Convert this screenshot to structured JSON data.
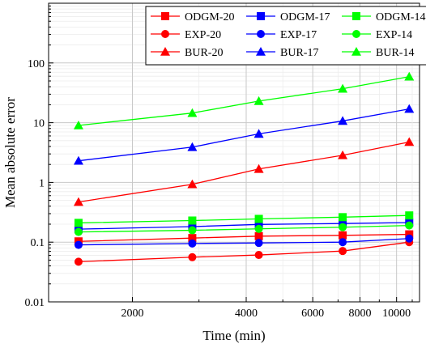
{
  "chart_data": {
    "type": "line",
    "xlabel": "Time (min)",
    "ylabel": "Mean absolute error",
    "x_scale": "log",
    "y_scale": "log",
    "xlim": [
      1200,
      11500
    ],
    "ylim": [
      0.01,
      1000
    ],
    "x_ticks": [
      2000,
      4000,
      6000,
      8000,
      10000
    ],
    "x_tick_labels": [
      "2000",
      "4000",
      "6000",
      "8000",
      "10000"
    ],
    "y_ticks": [
      0.01,
      0.1,
      1,
      10,
      100
    ],
    "y_tick_labels": [
      "0.01",
      "0.1",
      "1",
      "10",
      "100"
    ],
    "grid": true,
    "legend_position": "top",
    "x": [
      1440,
      2880,
      4320,
      7200,
      10800
    ],
    "series": [
      {
        "name": "ODGM-20",
        "color": "#ff0000",
        "marker": "square",
        "values": [
          0.103,
          0.117,
          0.126,
          0.13,
          0.135
        ]
      },
      {
        "name": "ODGM-17",
        "color": "#0000ff",
        "marker": "square",
        "values": [
          0.165,
          0.182,
          0.198,
          0.205,
          0.213
        ]
      },
      {
        "name": "ODGM-14",
        "color": "#00ff00",
        "marker": "square",
        "values": [
          0.21,
          0.23,
          0.245,
          0.262,
          0.28
        ]
      },
      {
        "name": "EXP-20",
        "color": "#ff0000",
        "marker": "circle",
        "values": [
          0.047,
          0.056,
          0.061,
          0.071,
          0.1
        ]
      },
      {
        "name": "EXP-17",
        "color": "#0000ff",
        "marker": "circle",
        "values": [
          0.09,
          0.095,
          0.097,
          0.1,
          0.115
        ]
      },
      {
        "name": "EXP-14",
        "color": "#00ff00",
        "marker": "circle",
        "values": [
          0.148,
          0.158,
          0.167,
          0.178,
          0.19
        ]
      },
      {
        "name": "BUR-20",
        "color": "#ff0000",
        "marker": "triangle",
        "values": [
          0.47,
          0.93,
          1.68,
          2.85,
          4.75
        ]
      },
      {
        "name": "BUR-17",
        "color": "#0000ff",
        "marker": "triangle",
        "values": [
          2.3,
          3.9,
          6.5,
          10.7,
          17
        ]
      },
      {
        "name": "BUR-14",
        "color": "#00ff00",
        "marker": "triangle",
        "values": [
          9,
          14.5,
          23,
          37,
          59
        ]
      }
    ]
  }
}
